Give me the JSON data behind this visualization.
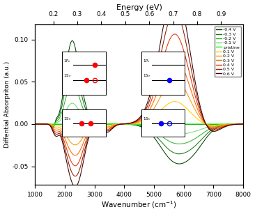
{
  "title_top": "Energy (eV)",
  "xlabel": "Wavenumber (cm$^{-1}$)",
  "ylabel": "Diffential Absorpriton (a.u.)",
  "xmin": 1000,
  "xmax": 8000,
  "ymin": -0.072,
  "ymax": 0.118,
  "yticks": [
    0.1,
    0.05,
    0.0,
    -0.05
  ],
  "energy_ticks_ev": [
    0.2,
    0.3,
    0.4,
    0.5,
    0.6,
    0.7,
    0.8,
    0.9
  ],
  "wavenumber_ticks": [
    1000,
    2000,
    3000,
    4000,
    5000,
    6000,
    7000,
    8000
  ],
  "green_colors": [
    "#004400",
    "#1a7a1a",
    "#2db52d",
    "#70e070",
    "#00ff00"
  ],
  "orange_colors": [
    "#ffcc00",
    "#ff9900",
    "#ff6600",
    "#e63300",
    "#8b1a00",
    "#3d0000"
  ],
  "legend_labels_green": [
    "-0.4 V",
    "-0.3 V",
    "-0.2 V",
    "-0.1 V",
    "pristine"
  ],
  "legend_labels_orange": [
    "0.1 V",
    "0.2 V",
    "0.3 V",
    "0.4 V",
    "0.5 V",
    "0.6 V"
  ]
}
